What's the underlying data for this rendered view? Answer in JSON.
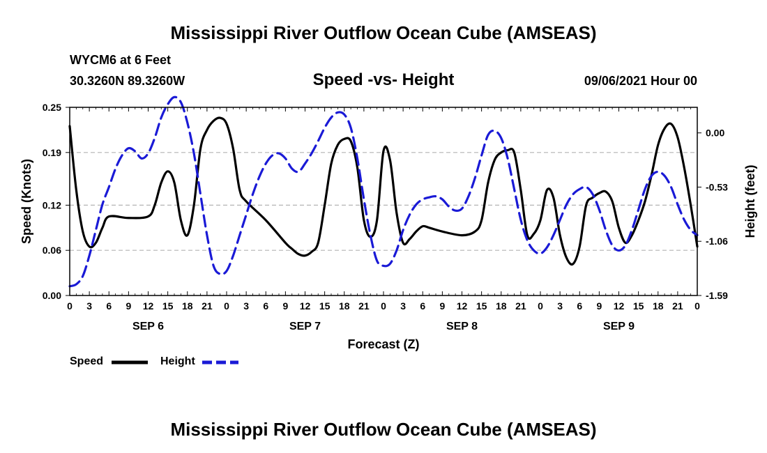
{
  "header": {
    "title": "Mississippi River Outflow Ocean Cube (AMSEAS)",
    "station": "WYCM6 at 6 Feet",
    "coords": "30.3260N  89.3260W",
    "subtitle": "Speed -vs- Height",
    "date": "09/06/2021 Hour 00"
  },
  "footer": {
    "title": "Mississippi River Outflow Ocean Cube (AMSEAS)"
  },
  "legend": {
    "speed_label": "Speed",
    "height_label": "Height"
  },
  "colors": {
    "speed": "#000000",
    "height": "#1a1ad6",
    "grid": "#b4b4b4"
  },
  "chart_data": {
    "type": "line",
    "title": "Speed -vs- Height",
    "xlabel": "Forecast (Z)",
    "ylabel": "Speed (Knots)",
    "ylabel_right": "Height (feet)",
    "xlim": [
      0,
      96
    ],
    "ylim": [
      0,
      0.25
    ],
    "ylim_right": [
      -1.59,
      0.25
    ],
    "x_ticks": [
      0,
      3,
      6,
      9,
      12,
      15,
      18,
      21,
      24,
      27,
      30,
      33,
      36,
      39,
      42,
      45,
      48,
      51,
      54,
      57,
      60,
      63,
      66,
      69,
      72,
      75,
      78,
      81,
      84,
      87,
      90,
      93,
      96
    ],
    "x_tick_labels": [
      "0",
      "3",
      "6",
      "9",
      "12",
      "15",
      "18",
      "21",
      "0",
      "3",
      "6",
      "9",
      "12",
      "15",
      "18",
      "21",
      "0",
      "3",
      "6",
      "9",
      "12",
      "15",
      "18",
      "21",
      "0",
      "3",
      "6",
      "9",
      "12",
      "15",
      "18",
      "21",
      "0"
    ],
    "day_labels": [
      {
        "x": 12,
        "label": "SEP 6"
      },
      {
        "x": 36,
        "label": "SEP 7"
      },
      {
        "x": 60,
        "label": "SEP 8"
      },
      {
        "x": 84,
        "label": "SEP 9"
      }
    ],
    "y_ticks_left": [
      0.0,
      0.06,
      0.12,
      0.19,
      0.25
    ],
    "y_tick_labels_left": [
      "0.00",
      "0.06",
      "0.12",
      "0.19",
      "0.25"
    ],
    "y_ticks_right": [
      -1.59,
      -1.06,
      -0.53,
      0.0
    ],
    "y_tick_labels_right": [
      "-1.59",
      "-1.06",
      "-0.53",
      "0.00"
    ],
    "gridlines": [
      0.06,
      0.12,
      0.19
    ],
    "series": [
      {
        "name": "Speed",
        "axis": "left",
        "style": "solid",
        "x": [
          0,
          1,
          2,
          3,
          4,
          5,
          6,
          9,
          12,
          13,
          14,
          15,
          16,
          17,
          18,
          19,
          20,
          21,
          22,
          23,
          24,
          25,
          26,
          27,
          30,
          33,
          34,
          35,
          36,
          37,
          38,
          39,
          40,
          41,
          42,
          43,
          44,
          45,
          46,
          47,
          48,
          49,
          50,
          51,
          52,
          53,
          54,
          55,
          57,
          60,
          62,
          63,
          64,
          65,
          66,
          67,
          68,
          69,
          70,
          71,
          72,
          73,
          74,
          75,
          76,
          77,
          78,
          79,
          80,
          81,
          82,
          83,
          84,
          85,
          86,
          87,
          88,
          89,
          90,
          91,
          92,
          93,
          94,
          95,
          96
        ],
        "values": [
          0.225,
          0.14,
          0.085,
          0.065,
          0.07,
          0.09,
          0.105,
          0.103,
          0.105,
          0.12,
          0.15,
          0.165,
          0.15,
          0.1,
          0.08,
          0.12,
          0.195,
          0.22,
          0.232,
          0.236,
          0.228,
          0.195,
          0.14,
          0.125,
          0.1,
          0.07,
          0.062,
          0.055,
          0.053,
          0.058,
          0.07,
          0.12,
          0.175,
          0.2,
          0.208,
          0.205,
          0.17,
          0.1,
          0.078,
          0.1,
          0.192,
          0.18,
          0.11,
          0.07,
          0.075,
          0.085,
          0.092,
          0.09,
          0.085,
          0.08,
          0.085,
          0.1,
          0.15,
          0.18,
          0.19,
          0.193,
          0.19,
          0.14,
          0.08,
          0.082,
          0.1,
          0.14,
          0.13,
          0.08,
          0.05,
          0.042,
          0.065,
          0.12,
          0.13,
          0.136,
          0.138,
          0.125,
          0.09,
          0.07,
          0.08,
          0.1,
          0.125,
          0.16,
          0.2,
          0.222,
          0.228,
          0.21,
          0.17,
          0.12,
          0.065
        ]
      },
      {
        "name": "Height",
        "axis": "right",
        "style": "dashed",
        "x": [
          0,
          1,
          2,
          3,
          4,
          5,
          6,
          7,
          8,
          9,
          10,
          11,
          12,
          13,
          14,
          15,
          16,
          17,
          18,
          19,
          20,
          21,
          22,
          23,
          24,
          25,
          26,
          27,
          28,
          29,
          30,
          31,
          32,
          33,
          34,
          35,
          36,
          37,
          38,
          39,
          40,
          41,
          42,
          43,
          44,
          45,
          46,
          47,
          48,
          49,
          50,
          51,
          52,
          53,
          54,
          55,
          56,
          57,
          58,
          59,
          60,
          61,
          62,
          63,
          64,
          65,
          66,
          67,
          68,
          69,
          70,
          71,
          72,
          73,
          74,
          75,
          76,
          77,
          78,
          79,
          80,
          81,
          82,
          83,
          84,
          85,
          86,
          87,
          88,
          89,
          90,
          91,
          92,
          93,
          94,
          95,
          96
        ],
        "values": [
          -1.5,
          -1.48,
          -1.4,
          -1.2,
          -0.95,
          -0.7,
          -0.53,
          -0.35,
          -0.22,
          -0.15,
          -0.18,
          -0.25,
          -0.2,
          -0.05,
          0.15,
          0.28,
          0.35,
          0.3,
          0.1,
          -0.2,
          -0.6,
          -1.0,
          -1.3,
          -1.38,
          -1.35,
          -1.2,
          -1.0,
          -0.8,
          -0.6,
          -0.43,
          -0.3,
          -0.22,
          -0.2,
          -0.25,
          -0.35,
          -0.38,
          -0.3,
          -0.2,
          -0.08,
          0.05,
          0.15,
          0.2,
          0.18,
          0.05,
          -0.25,
          -0.65,
          -1.0,
          -1.25,
          -1.3,
          -1.28,
          -1.15,
          -0.95,
          -0.8,
          -0.7,
          -0.65,
          -0.63,
          -0.62,
          -0.65,
          -0.72,
          -0.76,
          -0.74,
          -0.62,
          -0.44,
          -0.22,
          -0.02,
          0.02,
          -0.05,
          -0.25,
          -0.55,
          -0.85,
          -1.05,
          -1.15,
          -1.18,
          -1.12,
          -1.0,
          -0.85,
          -0.7,
          -0.6,
          -0.55,
          -0.53,
          -0.6,
          -0.75,
          -0.95,
          -1.1,
          -1.15,
          -1.1,
          -0.95,
          -0.75,
          -0.55,
          -0.42,
          -0.38,
          -0.42,
          -0.53,
          -0.7,
          -0.85,
          -0.95,
          -1.0
        ]
      }
    ]
  }
}
